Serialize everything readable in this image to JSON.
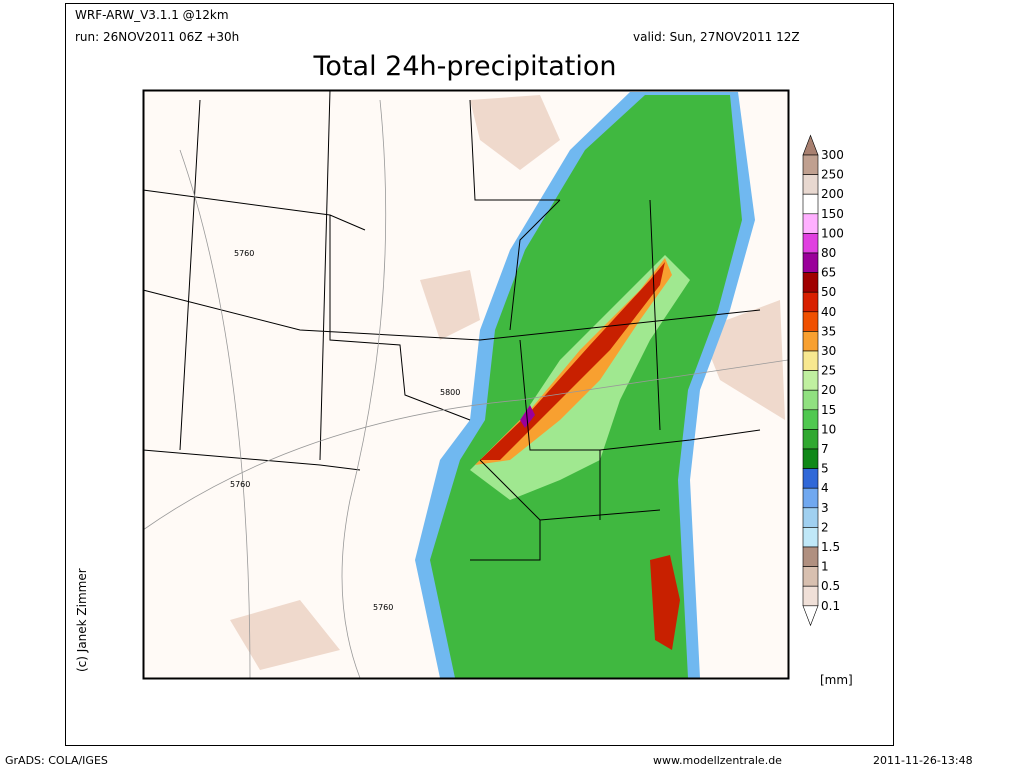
{
  "header": {
    "model": "WRF-ARW_V3.1.1 @12km",
    "run": "run: 26NOV2011 06Z +30h",
    "valid": "valid: Sun, 27NOV2011 12Z",
    "title": "Total 24h-precipitation"
  },
  "map": {
    "contour_labels": [
      "5760",
      "5800",
      "5760",
      "5760"
    ],
    "credit": "(c) Janek Zimmer"
  },
  "colorbar": {
    "labels": [
      300,
      250,
      200,
      150,
      100,
      80,
      65,
      50,
      40,
      35,
      30,
      25,
      20,
      15,
      10,
      7,
      5,
      4,
      3,
      2,
      1.5,
      1,
      0.5,
      0.1
    ],
    "colors": [
      "#a88070",
      "#c0a090",
      "#e8d8d0",
      "#ffffff",
      "#ffb0ff",
      "#e040e0",
      "#9a009a",
      "#a00000",
      "#d82000",
      "#f05000",
      "#f8a030",
      "#f8e890",
      "#c0f0a0",
      "#90e080",
      "#50c850",
      "#30a830",
      "#108818",
      "#3068d8",
      "#70a8f0",
      "#a0d0f0",
      "#c0e8f8",
      "#b09080",
      "#d8c0b0",
      "#f0e0d8",
      "#ffffff"
    ],
    "unit": "[mm]"
  },
  "footer": {
    "left": "GrADS: COLA/IGES",
    "center": "www.modellzentrale.de",
    "right": "2011-11-26-13:48"
  }
}
